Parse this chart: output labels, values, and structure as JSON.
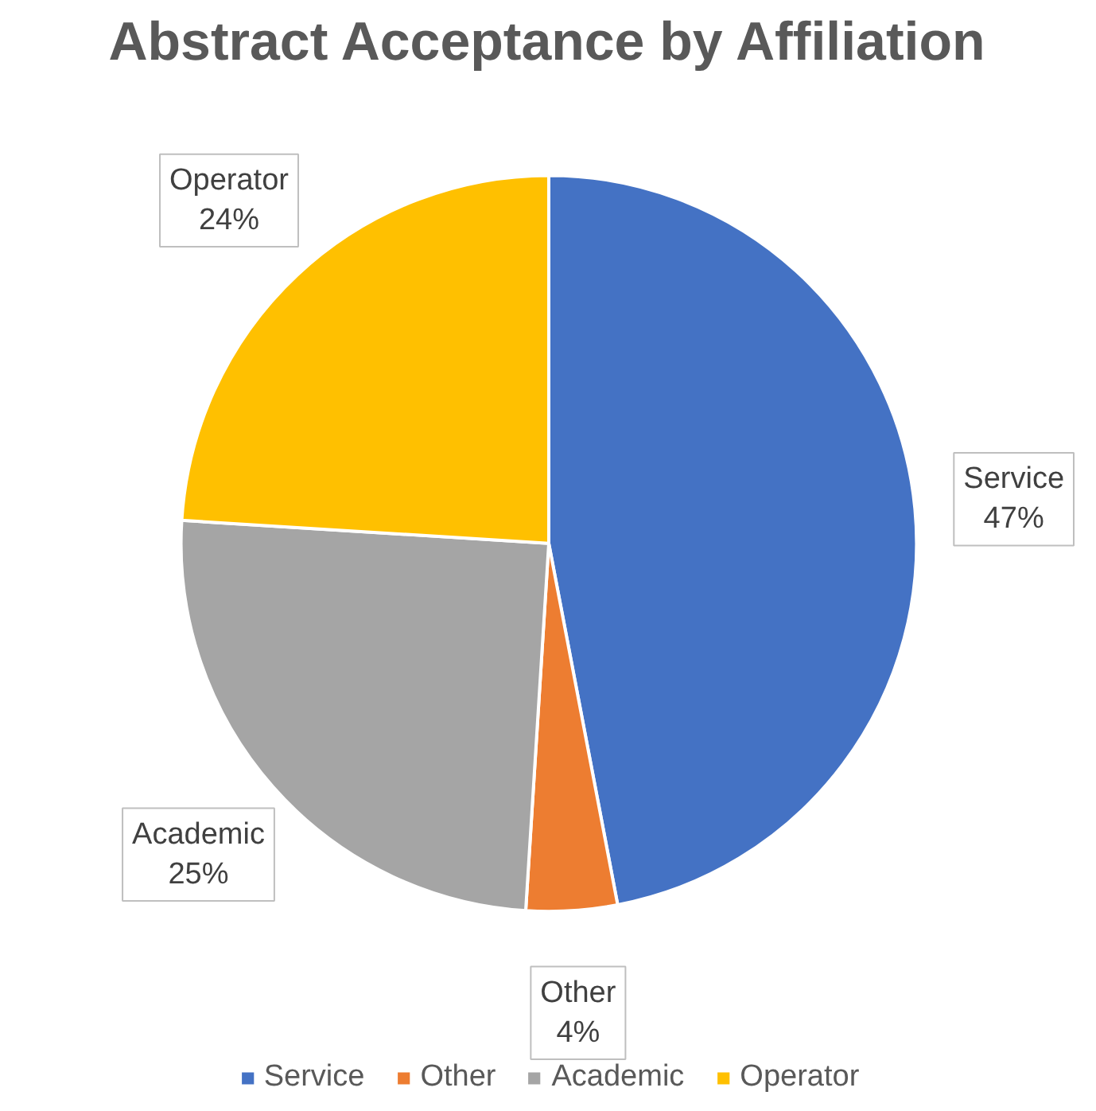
{
  "chart_data": {
    "type": "pie",
    "title": "Abstract Acceptance by Affiliation",
    "categories": [
      "Service",
      "Other",
      "Academic",
      "Operator"
    ],
    "values": [
      47,
      4,
      25,
      24
    ],
    "colors": [
      "#4472c4",
      "#ed7d31",
      "#a5a5a5",
      "#ffc000"
    ],
    "value_labels": [
      "47%",
      "4%",
      "25%",
      "24%"
    ],
    "legend": "bottom"
  }
}
